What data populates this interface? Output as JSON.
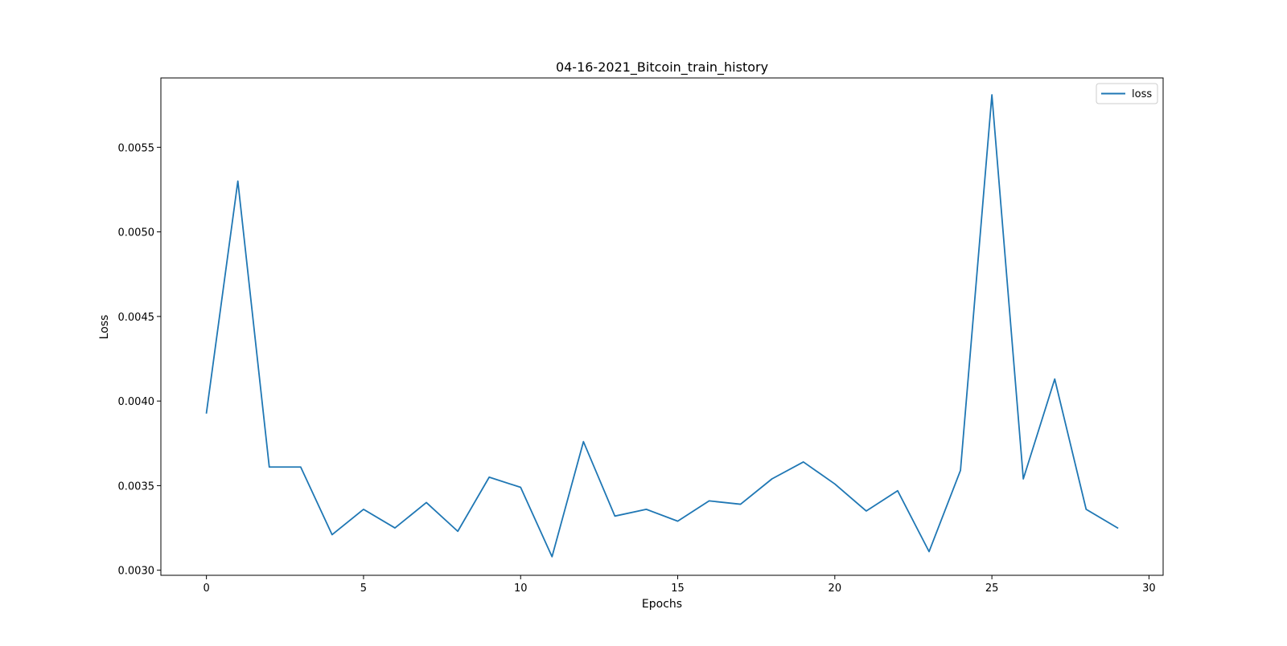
{
  "chart_data": {
    "type": "line",
    "title": "04-16-2021_Bitcoin_train_history",
    "xlabel": "Epochs",
    "ylabel": "Loss",
    "xlim": [
      -1.45,
      30.45
    ],
    "ylim": [
      0.00297,
      0.00591
    ],
    "x_ticks": [
      0,
      5,
      10,
      15,
      20,
      25,
      30
    ],
    "y_ticks": [
      0.003,
      0.0035,
      0.004,
      0.0045,
      0.005,
      0.0055
    ],
    "x_tick_labels": [
      "0",
      "5",
      "10",
      "15",
      "20",
      "25",
      "30"
    ],
    "y_tick_labels": [
      "0.0030",
      "0.0035",
      "0.0040",
      "0.0045",
      "0.0050",
      "0.0055"
    ],
    "grid": false,
    "legend_position": "top-right",
    "series": [
      {
        "name": "loss",
        "color": "#1f77b4",
        "x": [
          0,
          1,
          2,
          3,
          4,
          5,
          6,
          7,
          8,
          9,
          10,
          11,
          12,
          13,
          14,
          15,
          16,
          17,
          18,
          19,
          20,
          21,
          22,
          23,
          24,
          25,
          26,
          27,
          28,
          29
        ],
        "values": [
          0.00393,
          0.0053,
          0.00361,
          0.00361,
          0.00321,
          0.00336,
          0.00325,
          0.0034,
          0.00323,
          0.00355,
          0.00349,
          0.00308,
          0.00376,
          0.00332,
          0.00336,
          0.00329,
          0.00341,
          0.00339,
          0.00354,
          0.00364,
          0.00351,
          0.00335,
          0.00347,
          0.00311,
          0.00359,
          0.00581,
          0.00354,
          0.00413,
          0.00336,
          0.00325
        ]
      }
    ]
  }
}
